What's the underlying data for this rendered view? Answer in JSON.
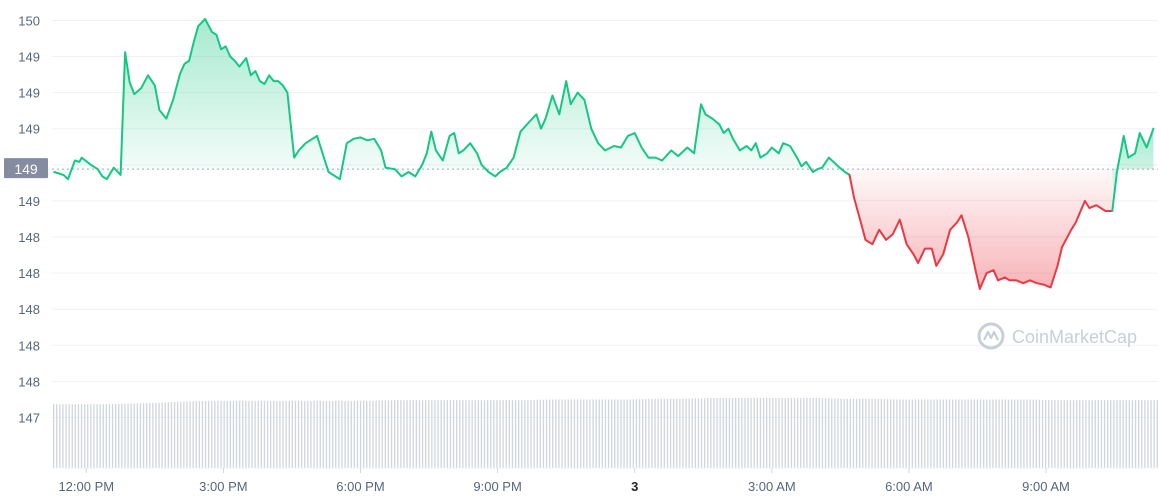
{
  "chart_data": {
    "type": "area",
    "baseline_price": 148.97,
    "baseline_label": "149",
    "ylim": [
      146.9,
      150.1
    ],
    "y_ticks": [
      {
        "value": 150.0,
        "label": "150"
      },
      {
        "value": 149.75,
        "label": "149"
      },
      {
        "value": 149.5,
        "label": "149"
      },
      {
        "value": 149.25,
        "label": "149"
      },
      {
        "value": 149.0,
        "label": "149"
      },
      {
        "value": 148.75,
        "label": "149"
      },
      {
        "value": 148.5,
        "label": "148"
      },
      {
        "value": 148.25,
        "label": "148"
      },
      {
        "value": 148.0,
        "label": "148"
      },
      {
        "value": 147.75,
        "label": "148"
      },
      {
        "value": 147.5,
        "label": "148"
      },
      {
        "value": 147.25,
        "label": "147"
      }
    ],
    "x_ticks": [
      {
        "label": "12:00 PM",
        "hour": 12,
        "bold": false
      },
      {
        "label": "3:00 PM",
        "hour": 15,
        "bold": false
      },
      {
        "label": "6:00 PM",
        "hour": 18,
        "bold": false
      },
      {
        "label": "9:00 PM",
        "hour": 21,
        "bold": false
      },
      {
        "label": "3",
        "hour": 24,
        "bold": true
      },
      {
        "label": "3:00 AM",
        "hour": 27,
        "bold": false
      },
      {
        "label": "6:00 AM",
        "hour": 30,
        "bold": false
      },
      {
        "label": "9:00 AM",
        "hour": 33,
        "bold": false
      }
    ],
    "x_range_hours": [
      11.25,
      35.45
    ],
    "volume_relative": [
      0.93,
      0.93,
      0.93,
      0.94,
      0.95,
      0.97,
      0.98,
      0.98,
      0.98,
      0.98,
      0.98,
      0.98,
      0.98,
      0.99,
      0.99,
      0.99,
      0.99,
      0.99,
      0.99,
      1.0,
      1.0,
      1.0,
      1.0,
      1.01,
      1.01,
      1.02,
      1.02,
      1.02,
      1.02,
      1.02,
      1.01,
      1.01,
      1.0,
      1.0,
      1.0,
      1.0,
      1.0,
      1.0,
      0.99,
      0.99,
      0.99,
      0.99,
      0.99
    ],
    "series": [
      {
        "values": [
          [
            11.3,
            148.95
          ],
          [
            11.5,
            148.93
          ],
          [
            11.6,
            148.9
          ],
          [
            11.75,
            149.03
          ],
          [
            11.85,
            149.02
          ],
          [
            11.9,
            149.05
          ],
          [
            12.1,
            149.0
          ],
          [
            12.25,
            148.97
          ],
          [
            12.35,
            148.92
          ],
          [
            12.45,
            148.9
          ],
          [
            12.6,
            148.98
          ],
          [
            12.75,
            148.93
          ],
          [
            12.85,
            149.78
          ],
          [
            12.95,
            149.57
          ],
          [
            13.05,
            149.49
          ],
          [
            13.2,
            149.53
          ],
          [
            13.35,
            149.62
          ],
          [
            13.5,
            149.55
          ],
          [
            13.6,
            149.38
          ],
          [
            13.75,
            149.32
          ],
          [
            13.9,
            149.45
          ],
          [
            14.05,
            149.63
          ],
          [
            14.15,
            149.7
          ],
          [
            14.25,
            149.72
          ],
          [
            14.35,
            149.85
          ],
          [
            14.45,
            149.96
          ],
          [
            14.6,
            150.01
          ],
          [
            14.75,
            149.92
          ],
          [
            14.85,
            149.9
          ],
          [
            14.95,
            149.8
          ],
          [
            15.05,
            149.82
          ],
          [
            15.15,
            149.75
          ],
          [
            15.25,
            149.72
          ],
          [
            15.35,
            149.68
          ],
          [
            15.5,
            149.74
          ],
          [
            15.6,
            149.62
          ],
          [
            15.7,
            149.65
          ],
          [
            15.8,
            149.58
          ],
          [
            15.9,
            149.56
          ],
          [
            16.0,
            149.62
          ],
          [
            16.1,
            149.58
          ],
          [
            16.2,
            149.58
          ],
          [
            16.3,
            149.55
          ],
          [
            16.4,
            149.5
          ],
          [
            16.55,
            149.05
          ],
          [
            16.65,
            149.1
          ],
          [
            16.8,
            149.15
          ],
          [
            16.95,
            149.18
          ],
          [
            17.05,
            149.2
          ],
          [
            17.2,
            149.05
          ],
          [
            17.3,
            148.95
          ],
          [
            17.45,
            148.92
          ],
          [
            17.55,
            148.9
          ],
          [
            17.7,
            149.15
          ],
          [
            17.85,
            149.18
          ],
          [
            18.0,
            149.19
          ],
          [
            18.15,
            149.17
          ],
          [
            18.3,
            149.18
          ],
          [
            18.45,
            149.1
          ],
          [
            18.55,
            148.98
          ],
          [
            18.75,
            148.97
          ],
          [
            18.9,
            148.92
          ],
          [
            19.05,
            148.95
          ],
          [
            19.2,
            148.92
          ],
          [
            19.35,
            149.0
          ],
          [
            19.45,
            149.08
          ],
          [
            19.55,
            149.23
          ],
          [
            19.65,
            149.1
          ],
          [
            19.8,
            149.03
          ],
          [
            19.95,
            149.2
          ],
          [
            20.05,
            149.22
          ],
          [
            20.15,
            149.08
          ],
          [
            20.25,
            149.1
          ],
          [
            20.4,
            149.15
          ],
          [
            20.55,
            149.08
          ],
          [
            20.65,
            149.0
          ],
          [
            20.8,
            148.95
          ],
          [
            20.95,
            148.92
          ],
          [
            21.05,
            148.95
          ],
          [
            21.2,
            148.98
          ],
          [
            21.35,
            149.05
          ],
          [
            21.5,
            149.23
          ],
          [
            21.7,
            149.3
          ],
          [
            21.85,
            149.35
          ],
          [
            21.95,
            149.25
          ],
          [
            22.05,
            149.32
          ],
          [
            22.2,
            149.48
          ],
          [
            22.35,
            149.35
          ],
          [
            22.5,
            149.58
          ],
          [
            22.6,
            149.42
          ],
          [
            22.75,
            149.5
          ],
          [
            22.9,
            149.45
          ],
          [
            23.05,
            149.25
          ],
          [
            23.2,
            149.15
          ],
          [
            23.35,
            149.1
          ],
          [
            23.55,
            149.13
          ],
          [
            23.7,
            149.12
          ],
          [
            23.85,
            149.2
          ],
          [
            24.0,
            149.22
          ],
          [
            24.15,
            149.12
          ],
          [
            24.3,
            149.05
          ],
          [
            24.45,
            149.05
          ],
          [
            24.6,
            149.03
          ],
          [
            24.8,
            149.1
          ],
          [
            24.95,
            149.06
          ],
          [
            25.15,
            149.12
          ],
          [
            25.3,
            149.08
          ],
          [
            25.45,
            149.42
          ],
          [
            25.55,
            149.35
          ],
          [
            25.7,
            149.32
          ],
          [
            25.85,
            149.28
          ],
          [
            25.95,
            149.22
          ],
          [
            26.05,
            149.25
          ],
          [
            26.15,
            149.18
          ],
          [
            26.3,
            149.1
          ],
          [
            26.45,
            149.13
          ],
          [
            26.55,
            149.1
          ],
          [
            26.65,
            149.15
          ],
          [
            26.75,
            149.05
          ],
          [
            26.9,
            149.08
          ],
          [
            27.0,
            149.12
          ],
          [
            27.15,
            149.08
          ],
          [
            27.25,
            149.15
          ],
          [
            27.4,
            149.13
          ],
          [
            27.55,
            149.05
          ],
          [
            27.65,
            148.99
          ],
          [
            27.75,
            149.02
          ],
          [
            27.9,
            148.95
          ],
          [
            28.0,
            148.97
          ],
          [
            28.1,
            148.98
          ],
          [
            28.25,
            149.05
          ],
          [
            28.45,
            148.99
          ],
          [
            28.6,
            148.95
          ],
          [
            28.7,
            148.93
          ]
        ]
      },
      {
        "values": [
          [
            28.7,
            148.93
          ],
          [
            28.8,
            148.77
          ],
          [
            28.95,
            148.6
          ],
          [
            29.05,
            148.48
          ],
          [
            29.2,
            148.45
          ],
          [
            29.35,
            148.55
          ],
          [
            29.5,
            148.48
          ],
          [
            29.65,
            148.52
          ],
          [
            29.8,
            148.62
          ],
          [
            29.95,
            148.45
          ],
          [
            30.1,
            148.38
          ],
          [
            30.2,
            148.32
          ],
          [
            30.35,
            148.42
          ],
          [
            30.5,
            148.42
          ],
          [
            30.6,
            148.3
          ],
          [
            30.75,
            148.38
          ],
          [
            30.9,
            148.55
          ],
          [
            31.05,
            148.6
          ],
          [
            31.15,
            148.65
          ],
          [
            31.3,
            148.5
          ],
          [
            31.45,
            148.28
          ],
          [
            31.55,
            148.14
          ],
          [
            31.7,
            148.25
          ],
          [
            31.85,
            148.27
          ],
          [
            31.95,
            148.2
          ],
          [
            32.1,
            148.22
          ],
          [
            32.2,
            148.2
          ],
          [
            32.35,
            148.2
          ],
          [
            32.5,
            148.18
          ],
          [
            32.65,
            148.2
          ],
          [
            32.8,
            148.18
          ],
          [
            32.95,
            148.17
          ],
          [
            33.1,
            148.15
          ],
          [
            33.25,
            148.3
          ],
          [
            33.35,
            148.43
          ],
          [
            33.55,
            148.55
          ],
          [
            33.65,
            148.6
          ],
          [
            33.85,
            148.75
          ],
          [
            33.95,
            148.7
          ],
          [
            34.1,
            148.72
          ],
          [
            34.3,
            148.68
          ],
          [
            34.45,
            148.68
          ]
        ]
      },
      {
        "values": [
          [
            34.45,
            148.68
          ],
          [
            34.55,
            148.95
          ],
          [
            34.7,
            149.2
          ],
          [
            34.8,
            149.05
          ],
          [
            34.95,
            149.08
          ],
          [
            35.05,
            149.22
          ],
          [
            35.2,
            149.12
          ],
          [
            35.35,
            149.25
          ]
        ]
      }
    ],
    "colors": {
      "up_line": "#16c784",
      "down_line": "#ea3943",
      "baseline": "#a0a7b4",
      "axis_text": "#58667e",
      "volume": "#d0d5de",
      "label_box": "#858ca2"
    },
    "watermark": "CoinMarketCap"
  }
}
